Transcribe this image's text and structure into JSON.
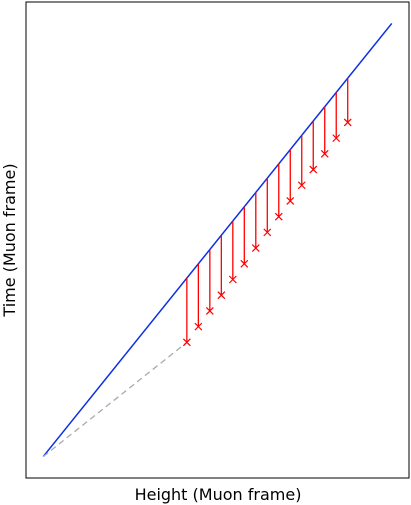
{
  "chart_data": {
    "type": "line",
    "title": "",
    "xlabel": "Height (Muon frame)",
    "ylabel": "Time (Muon frame)",
    "xticks": [],
    "yticks": [],
    "grid": false,
    "legend": "none",
    "xlim": [
      0,
      1
    ],
    "ylim": [
      0,
      1
    ],
    "series": [
      {
        "style": "solid-line",
        "color": "#0b2fe6",
        "x": [
          0.045,
          0.955
        ],
        "y": [
          0.045,
          0.955
        ]
      },
      {
        "style": "dashed-line",
        "color": "#aaaaaa",
        "x": [
          0.045,
          0.42
        ],
        "y": [
          0.045,
          0.285
        ]
      },
      {
        "style": "drop-lines-with-x-markers",
        "color": "#ff0000",
        "x": [
          0.42,
          0.45,
          0.48,
          0.51,
          0.54,
          0.57,
          0.6,
          0.63,
          0.66,
          0.69,
          0.72,
          0.75,
          0.78,
          0.81,
          0.84
        ],
        "y_top": [
          0.42,
          0.45,
          0.48,
          0.51,
          0.54,
          0.57,
          0.6,
          0.63,
          0.66,
          0.69,
          0.72,
          0.75,
          0.78,
          0.81,
          0.84
        ],
        "y_marker": [
          0.285,
          0.318,
          0.351,
          0.384,
          0.417,
          0.45,
          0.483,
          0.516,
          0.549,
          0.582,
          0.615,
          0.648,
          0.681,
          0.714,
          0.747
        ]
      }
    ]
  }
}
